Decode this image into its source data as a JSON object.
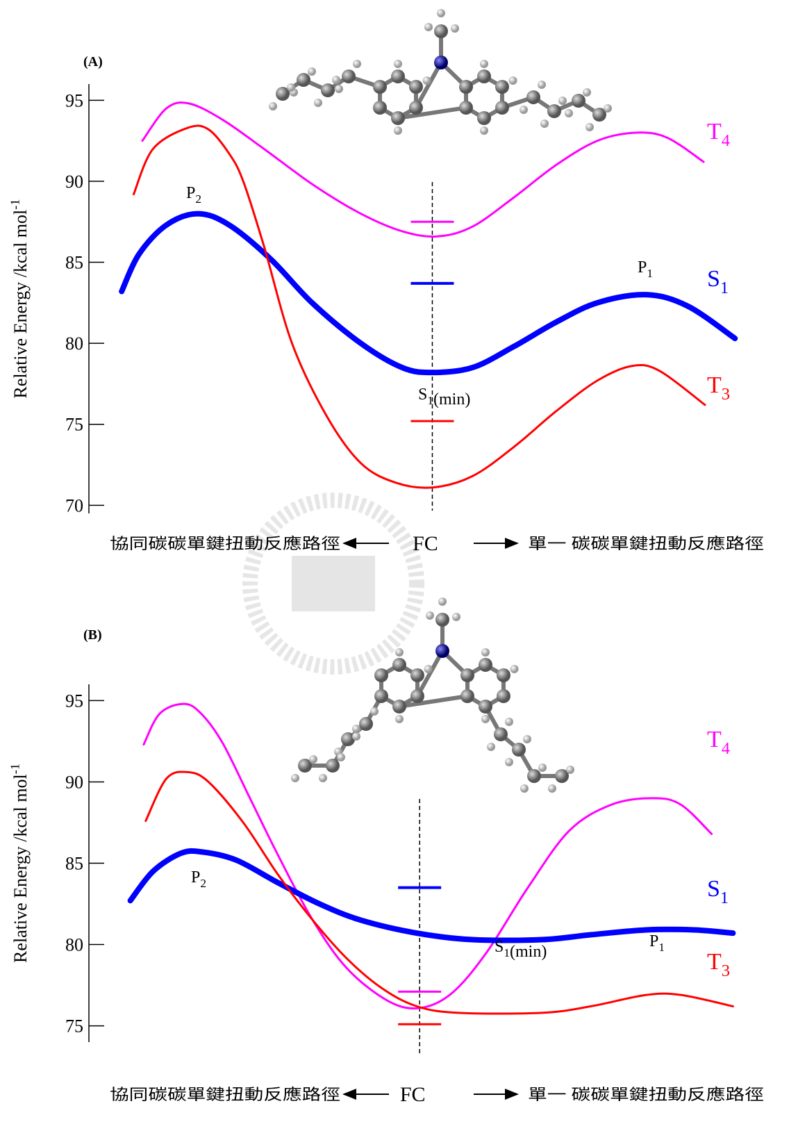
{
  "chart_data": [
    {
      "type": "line",
      "panel_label": "(A)",
      "y_label": "Relative Energy /kcal mol-1",
      "ylim": [
        69.5,
        96
      ],
      "yticks": [
        70,
        75,
        80,
        85,
        90,
        95
      ],
      "xlim": [
        0,
        100
      ],
      "fc_x": 51.4,
      "x_label_left": "協同碳碳單鍵扭動反應路徑",
      "x_label_center": "FC",
      "x_label_right": "單一 碳碳單鍵扭動反應路徑",
      "annotations": [
        "P2",
        "P1",
        "S1(min)"
      ],
      "series": [
        {
          "name": "T4",
          "color": "#ff00ff",
          "line_width": 3,
          "fc_level": 87.5,
          "x": [
            8.0,
            11.6,
            15.0,
            20.0,
            26.2,
            33.5,
            40.7,
            47.0,
            52.2,
            57.4,
            63.6,
            69.9,
            76.1,
            81.8,
            86.5,
            92.0
          ],
          "values": [
            92.5,
            94.5,
            94.8,
            93.8,
            92.0,
            89.8,
            88.0,
            86.9,
            86.6,
            87.2,
            89.0,
            91.0,
            92.5,
            93.0,
            92.7,
            91.2
          ]
        },
        {
          "name": "S1",
          "color": "#0000ff",
          "line_width": 8,
          "fc_level": 83.7,
          "x": [
            4.9,
            7.5,
            11.6,
            16.3,
            21.0,
            27.2,
            33.4,
            40.7,
            46.9,
            51.4,
            57.4,
            63.6,
            69.9,
            76.1,
            83.4,
            89.6,
            96.7
          ],
          "values": [
            83.2,
            85.5,
            87.3,
            88.0,
            87.3,
            85.2,
            82.5,
            80.0,
            78.5,
            78.2,
            78.5,
            79.8,
            81.3,
            82.5,
            83.0,
            82.3,
            80.3
          ]
        },
        {
          "name": "T3",
          "color": "#ff0000",
          "line_width": 3,
          "fc_level": 75.2,
          "x": [
            6.7,
            9.6,
            14.8,
            17.9,
            21.0,
            23.1,
            26.2,
            30.4,
            35.6,
            40.7,
            45.9,
            51.4,
            57.4,
            63.6,
            69.9,
            76.1,
            81.3,
            85.4,
            92.2
          ],
          "values": [
            89.2,
            92.0,
            93.3,
            93.2,
            91.7,
            90.0,
            86.0,
            80.0,
            75.5,
            72.6,
            71.4,
            71.1,
            71.8,
            73.6,
            75.8,
            77.7,
            78.6,
            78.3,
            76.2
          ]
        }
      ]
    },
    {
      "type": "line",
      "panel_label": "(B)",
      "y_label": "Relative Energy /kcal mol-1",
      "ylim": [
        74,
        96
      ],
      "yticks": [
        75,
        80,
        85,
        90,
        95
      ],
      "xlim": [
        0,
        100
      ],
      "fc_x": 49.5,
      "x_label_left": "協同碳碳單鍵扭動反應路徑",
      "x_label_center": "FC",
      "x_label_right": "單一 碳碳單鍵扭動反應路徑",
      "annotations": [
        "P2",
        "P1",
        "S1(min)"
      ],
      "series": [
        {
          "name": "T4",
          "color": "#ff00ff",
          "line_width": 3,
          "fc_level": 77.1,
          "x": [
            8.2,
            10.6,
            14.2,
            16.8,
            20.0,
            24.1,
            28.3,
            33.5,
            38.7,
            44.9,
            49.6,
            54.3,
            59.5,
            65.7,
            71.9,
            78.2,
            84.4,
            88.6,
            93.2
          ],
          "values": [
            92.3,
            94.2,
            94.8,
            94.2,
            92.4,
            89.0,
            85.5,
            81.5,
            78.5,
            76.5,
            76.1,
            77.0,
            79.5,
            83.5,
            87.0,
            88.6,
            89.0,
            88.6,
            86.8
          ]
        },
        {
          "name": "S1",
          "color": "#0000ff",
          "line_width": 8,
          "fc_level": 83.5,
          "x": [
            6.2,
            9.6,
            13.7,
            16.8,
            22.0,
            28.3,
            34.5,
            40.7,
            49.1,
            57.4,
            67.8,
            75.1,
            83.4,
            90.6,
            96.4
          ],
          "values": [
            82.7,
            84.5,
            85.6,
            85.7,
            85.2,
            83.8,
            82.5,
            81.5,
            80.7,
            80.3,
            80.3,
            80.6,
            80.9,
            80.9,
            80.7
          ]
        },
        {
          "name": "T3",
          "color": "#ff0000",
          "line_width": 3,
          "fc_level": 75.1,
          "x": [
            8.5,
            11.6,
            14.8,
            17.9,
            23.1,
            28.3,
            33.5,
            38.7,
            43.9,
            49.1,
            55.3,
            67.8,
            75.1,
            83.4,
            88.6,
            96.4
          ],
          "values": [
            87.6,
            90.2,
            90.6,
            90.0,
            87.5,
            84.3,
            81.5,
            79.1,
            77.3,
            76.2,
            75.8,
            75.8,
            76.2,
            76.9,
            76.9,
            76.2
          ]
        }
      ]
    }
  ]
}
